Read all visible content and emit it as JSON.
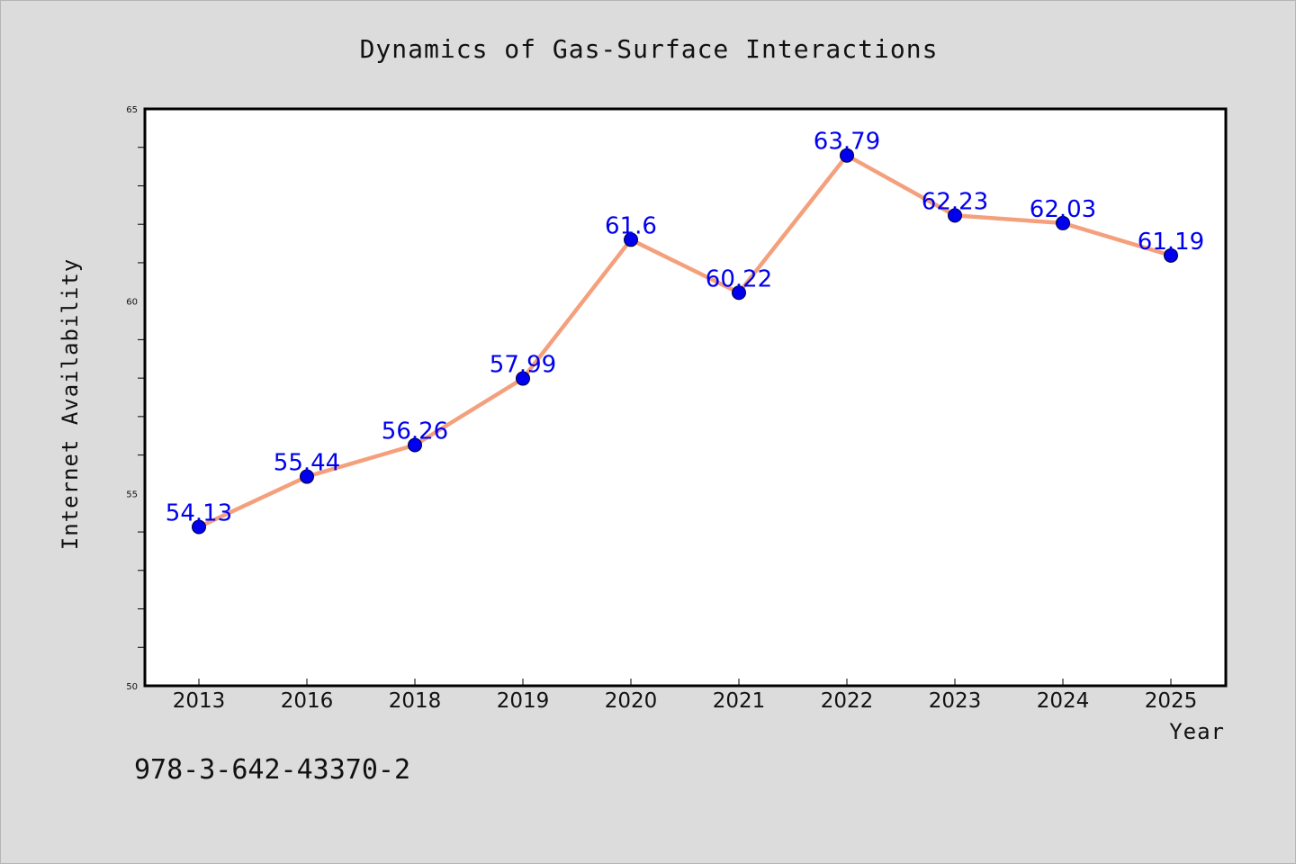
{
  "chart_data": {
    "type": "line",
    "title": "Dynamics of Gas-Surface Interactions",
    "xlabel": "Year",
    "ylabel": "Internet Availability",
    "categories": [
      "2013",
      "2016",
      "2018",
      "2019",
      "2020",
      "2021",
      "2022",
      "2023",
      "2024",
      "2025"
    ],
    "series": [
      {
        "values": [
          54.13,
          55.44,
          56.26,
          57.99,
          61.6,
          60.22,
          63.79,
          62.23,
          62.03,
          61.19
        ],
        "labels": [
          "54.13",
          "55.44",
          "56.26",
          "57.99",
          "61.6",
          "60.22",
          "63.79",
          "62.23",
          "62.03",
          "61.19"
        ],
        "line_color": "#f4a07c",
        "marker_color": "#0000ee",
        "label_color": "#0000ee"
      }
    ],
    "ylim": [
      50,
      65
    ],
    "yticks": [
      "50",
      "55",
      "60",
      "65"
    ],
    "grid": false,
    "legend": "none"
  },
  "footer": {
    "code": "978-3-642-43370-2"
  },
  "colors": {
    "background": "#dcdcdc",
    "plot_background": "#ffffff",
    "axis": "#000000"
  }
}
